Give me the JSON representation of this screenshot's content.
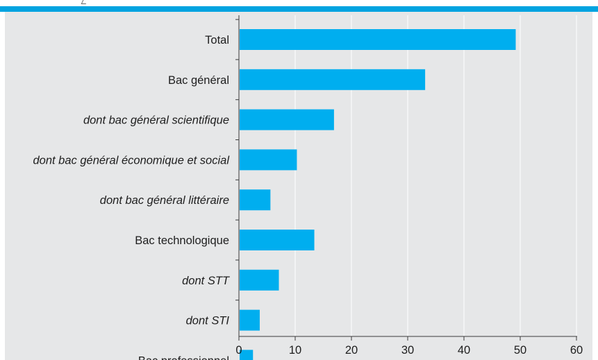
{
  "colors": {
    "accent": "#00a3e0",
    "plot_background": "#e6e7e8",
    "bar": "#00aeef",
    "gridline": "#ffffff",
    "axis": "#3a3a3a"
  },
  "chart_data": {
    "type": "bar",
    "orientation": "horizontal",
    "title": "",
    "xlabel": "",
    "ylabel": "",
    "categories": [
      "Total",
      "Bac général",
      "dont bac général scientifique",
      "dont bac général économique et social",
      "dont bac général littéraire",
      "Bac technologique",
      "dont STT",
      "dont STI",
      "Bac professionnel"
    ],
    "category_italic": [
      false,
      false,
      true,
      true,
      true,
      false,
      true,
      true,
      false
    ],
    "values": [
      49.2,
      33.1,
      16.9,
      10.3,
      5.6,
      13.4,
      7.1,
      3.7,
      2.5
    ],
    "xlim": [
      0,
      60
    ],
    "xticks": [
      "0",
      "10",
      "20",
      "30",
      "40",
      "50",
      "60"
    ],
    "grid": true,
    "legend": "none"
  }
}
